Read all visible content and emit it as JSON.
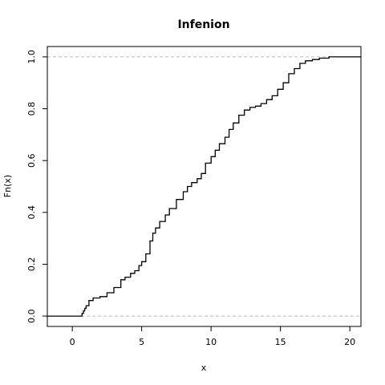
{
  "chart_data": {
    "type": "line",
    "subtype": "ecdf-step",
    "title": "Infenion",
    "xlabel": "x",
    "ylabel": "Fn(x)",
    "xlim": [
      -1.8,
      20.8
    ],
    "ylim": [
      -0.04,
      1.04
    ],
    "xticks": [
      0,
      5,
      10,
      15,
      20
    ],
    "xtick_labels": [
      "0",
      "5",
      "10",
      "15",
      "20"
    ],
    "yticks": [
      0.0,
      0.2,
      0.4,
      0.6,
      0.8,
      1.0
    ],
    "ytick_labels": [
      "0.0",
      "0.2",
      "0.4",
      "0.6",
      "0.8",
      "1.0"
    ],
    "reference_lines": [
      0.0,
      1.0
    ],
    "reference_line_style": "dashed-gray",
    "box": true,
    "grid": false,
    "series": [
      {
        "x": [
          -1.8,
          0.6,
          0.7,
          0.8,
          0.9,
          1.0,
          1.2,
          1.5,
          2.0,
          2.5,
          3.0,
          3.5,
          3.8,
          4.2,
          4.5,
          4.8,
          5.0,
          5.3,
          5.6,
          5.8,
          6.0,
          6.3,
          6.7,
          7.0,
          7.5,
          8.0,
          8.3,
          8.6,
          9.0,
          9.3,
          9.6,
          10.0,
          10.3,
          10.6,
          11.0,
          11.3,
          11.6,
          12.0,
          12.4,
          12.8,
          13.2,
          13.6,
          14.0,
          14.4,
          14.8,
          15.2,
          15.6,
          16.0,
          16.4,
          16.8,
          17.3,
          17.8,
          18.5,
          20.8
        ],
        "y": [
          0.0,
          0.0,
          0.01,
          0.02,
          0.03,
          0.04,
          0.06,
          0.07,
          0.075,
          0.09,
          0.11,
          0.14,
          0.15,
          0.165,
          0.175,
          0.195,
          0.21,
          0.24,
          0.29,
          0.32,
          0.34,
          0.365,
          0.39,
          0.415,
          0.45,
          0.48,
          0.5,
          0.515,
          0.53,
          0.55,
          0.59,
          0.615,
          0.64,
          0.665,
          0.69,
          0.72,
          0.745,
          0.775,
          0.795,
          0.805,
          0.81,
          0.82,
          0.835,
          0.85,
          0.875,
          0.9,
          0.935,
          0.955,
          0.975,
          0.985,
          0.99,
          0.995,
          1.0,
          1.0
        ]
      }
    ]
  }
}
